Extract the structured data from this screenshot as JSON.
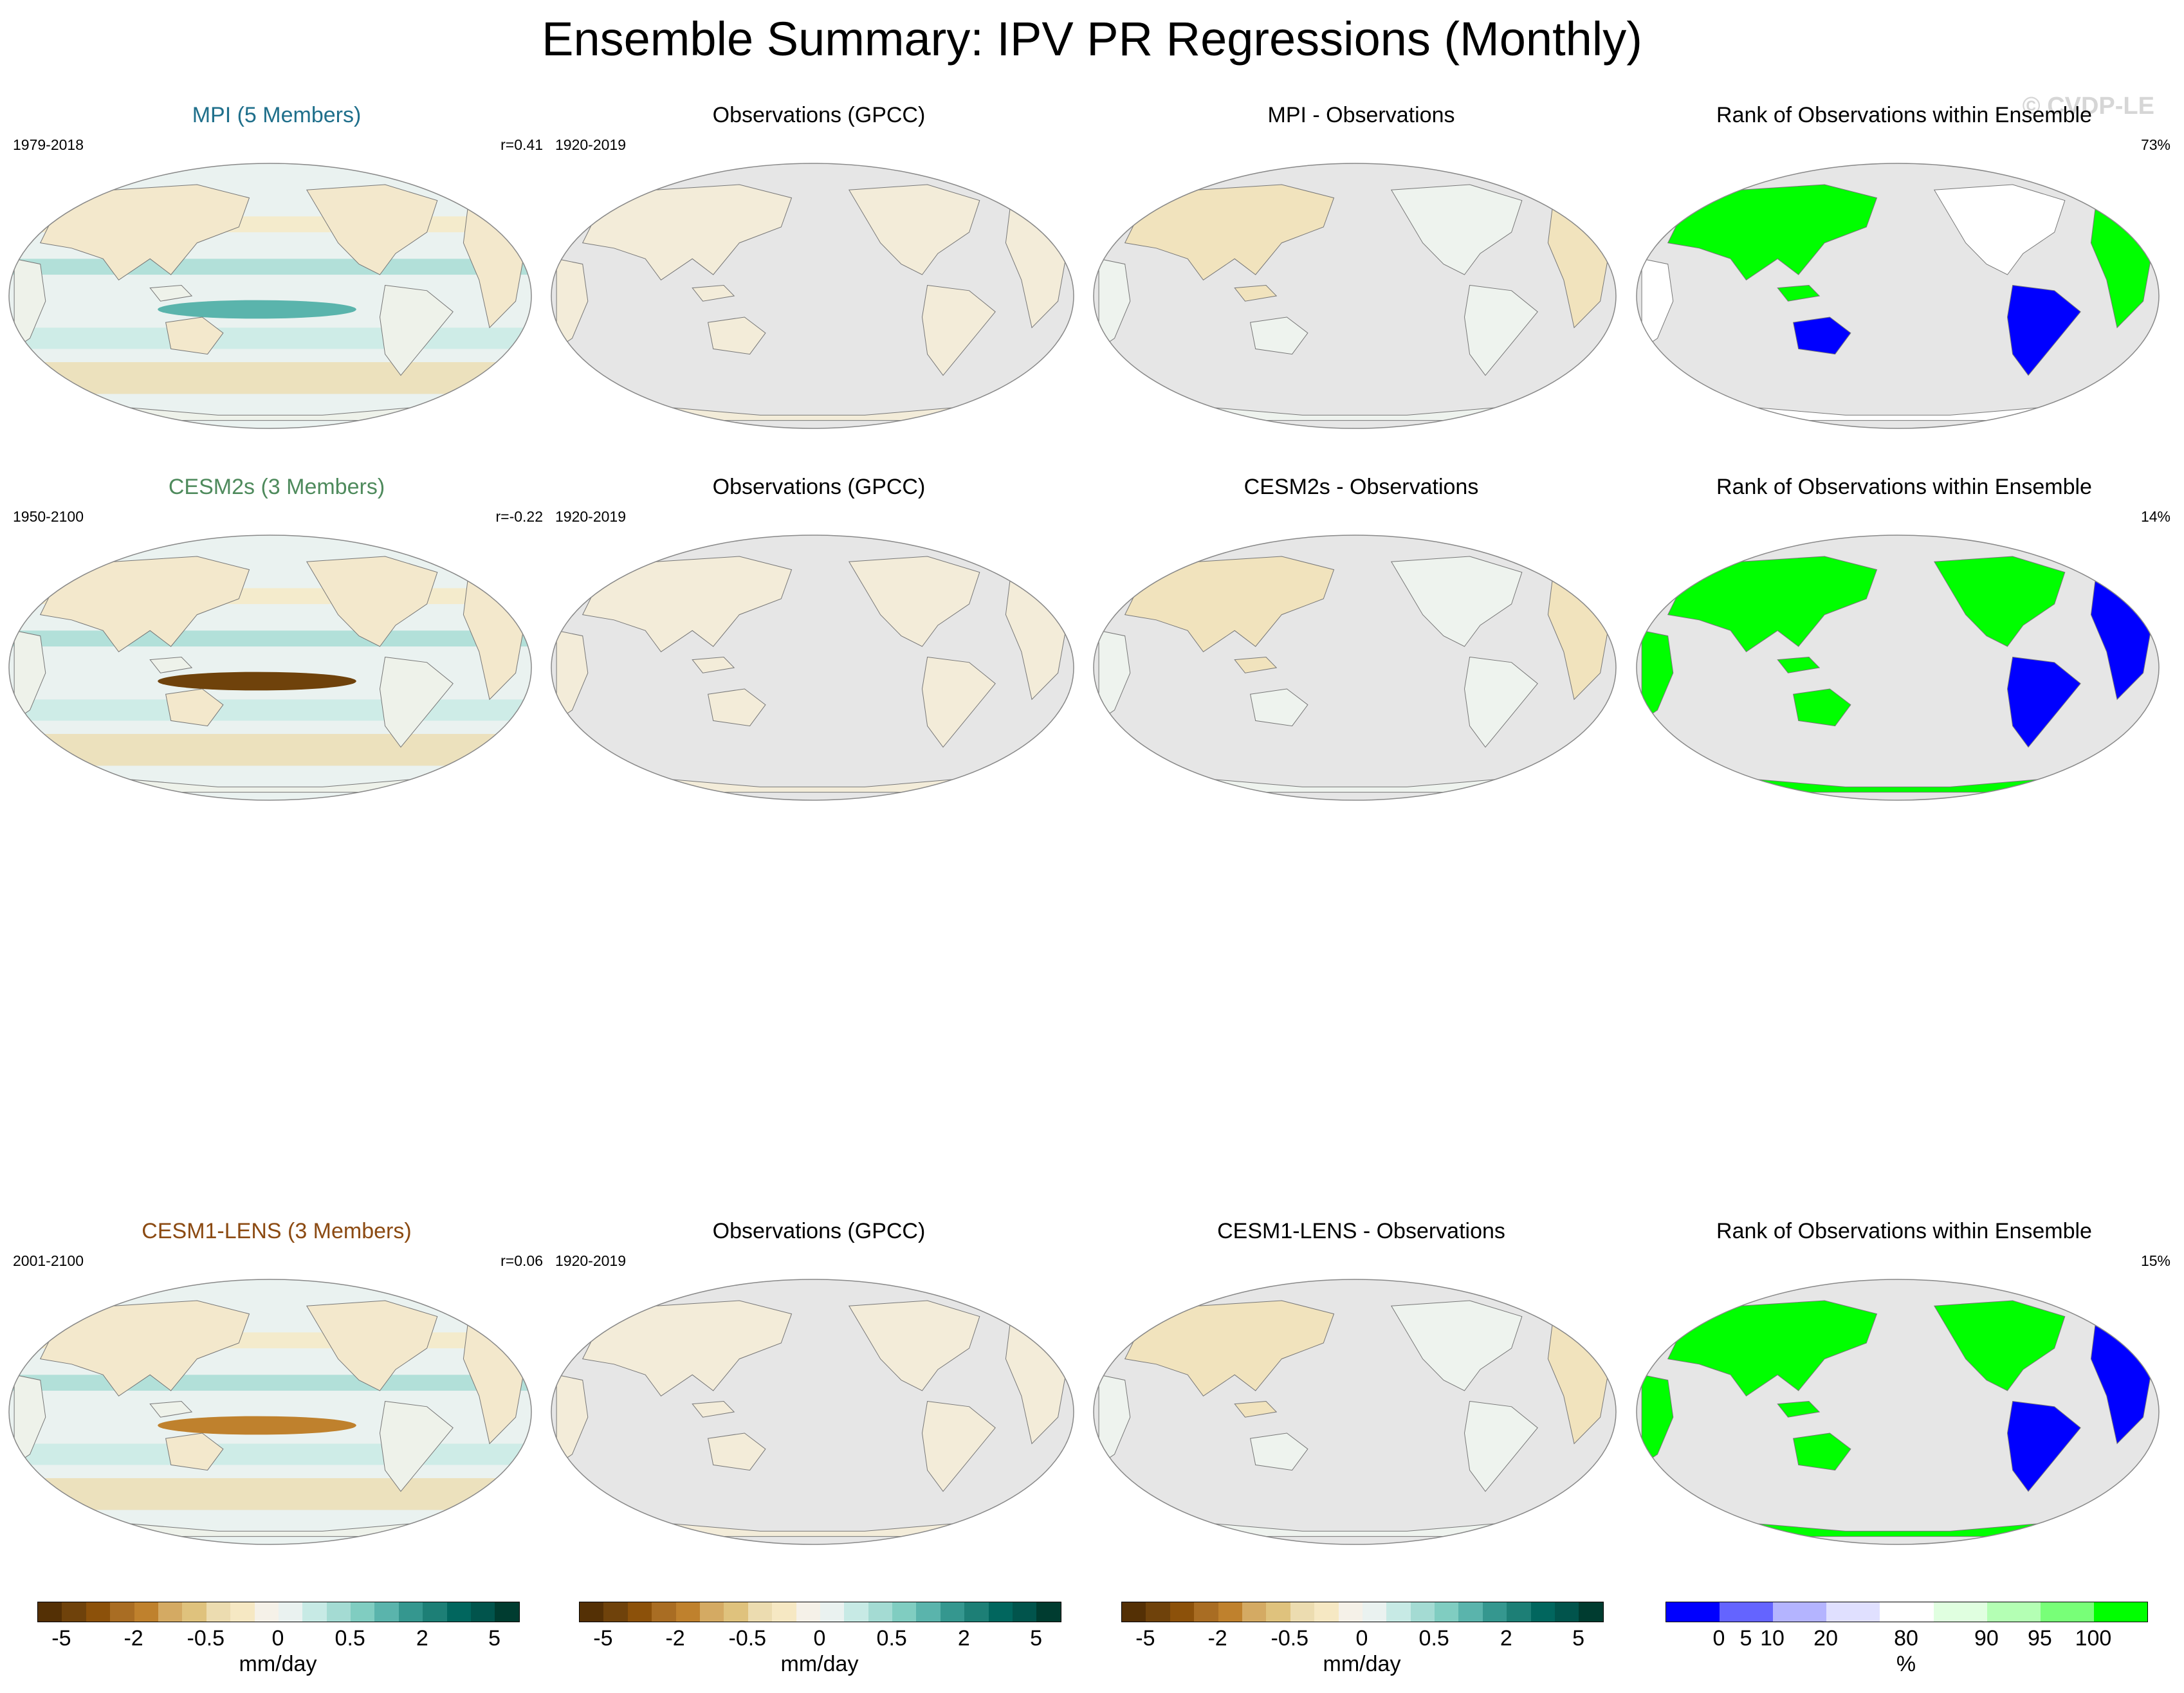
{
  "title": "Ensemble Summary: IPV PR Regressions (Monthly)",
  "watermark": "© CVDP-LE",
  "rows": [
    {
      "model": {
        "title": "MPI (5 Members)",
        "color": "#1f6f8b",
        "period": "1979-2018",
        "corr": "r=0.41"
      },
      "obs": {
        "title": "Observations (GPCC)",
        "period": "1920-2019"
      },
      "diff": {
        "title": "MPI - Observations"
      },
      "rank": {
        "title": "Rank of Observations within Ensemble",
        "value": "73%"
      }
    },
    {
      "model": {
        "title": "CESM2s (3 Members)",
        "color": "#4e8a5c",
        "period": "1950-2100",
        "corr": "r=-0.22"
      },
      "obs": {
        "title": "Observations (GPCC)",
        "period": "1920-2019"
      },
      "diff": {
        "title": "CESM2s - Observations"
      },
      "rank": {
        "title": "Rank of Observations within Ensemble",
        "value": "14%"
      }
    },
    {
      "model": {
        "title": "CESM1-LENS (3 Members)",
        "color": "#8b4a12",
        "period": "2001-2100",
        "corr": "r=0.06"
      },
      "obs": {
        "title": "Observations (GPCC)",
        "period": "1920-2019"
      },
      "diff": {
        "title": "CESM1-LENS - Observations"
      },
      "rank": {
        "title": "Rank of Observations within Ensemble",
        "value": "15%"
      }
    }
  ],
  "colorbars": {
    "precip": {
      "unit": "mm/day",
      "ticks": [
        "-5",
        "-2",
        "-0.5",
        "0",
        "0.5",
        "2",
        "5"
      ],
      "colors": [
        "#543005",
        "#6f420b",
        "#8c510a",
        "#a96d23",
        "#bf812d",
        "#d4aa63",
        "#dfc27d",
        "#ecdcb0",
        "#f6e8c3",
        "#f5f1e8",
        "#eaf2f0",
        "#c7eae5",
        "#a4dbd3",
        "#80cdc1",
        "#5ab4ac",
        "#35978f",
        "#1d7f76",
        "#01665e",
        "#01544c",
        "#003c30"
      ]
    },
    "rank": {
      "unit": "%",
      "ticks": [
        "0",
        "5",
        "10",
        "20",
        "80",
        "90",
        "95",
        "100"
      ],
      "colors": [
        "#0000ff",
        "#6464ff",
        "#b4b4ff",
        "#e0e0ff",
        "#ffffff",
        "#e0ffe0",
        "#b4ffb4",
        "#78ff78",
        "#00ff00"
      ]
    }
  },
  "legend_colors": {
    "ocean_gray": "#e6e6e6",
    "rank_low": "#0000ff",
    "rank_high": "#00ff00"
  }
}
